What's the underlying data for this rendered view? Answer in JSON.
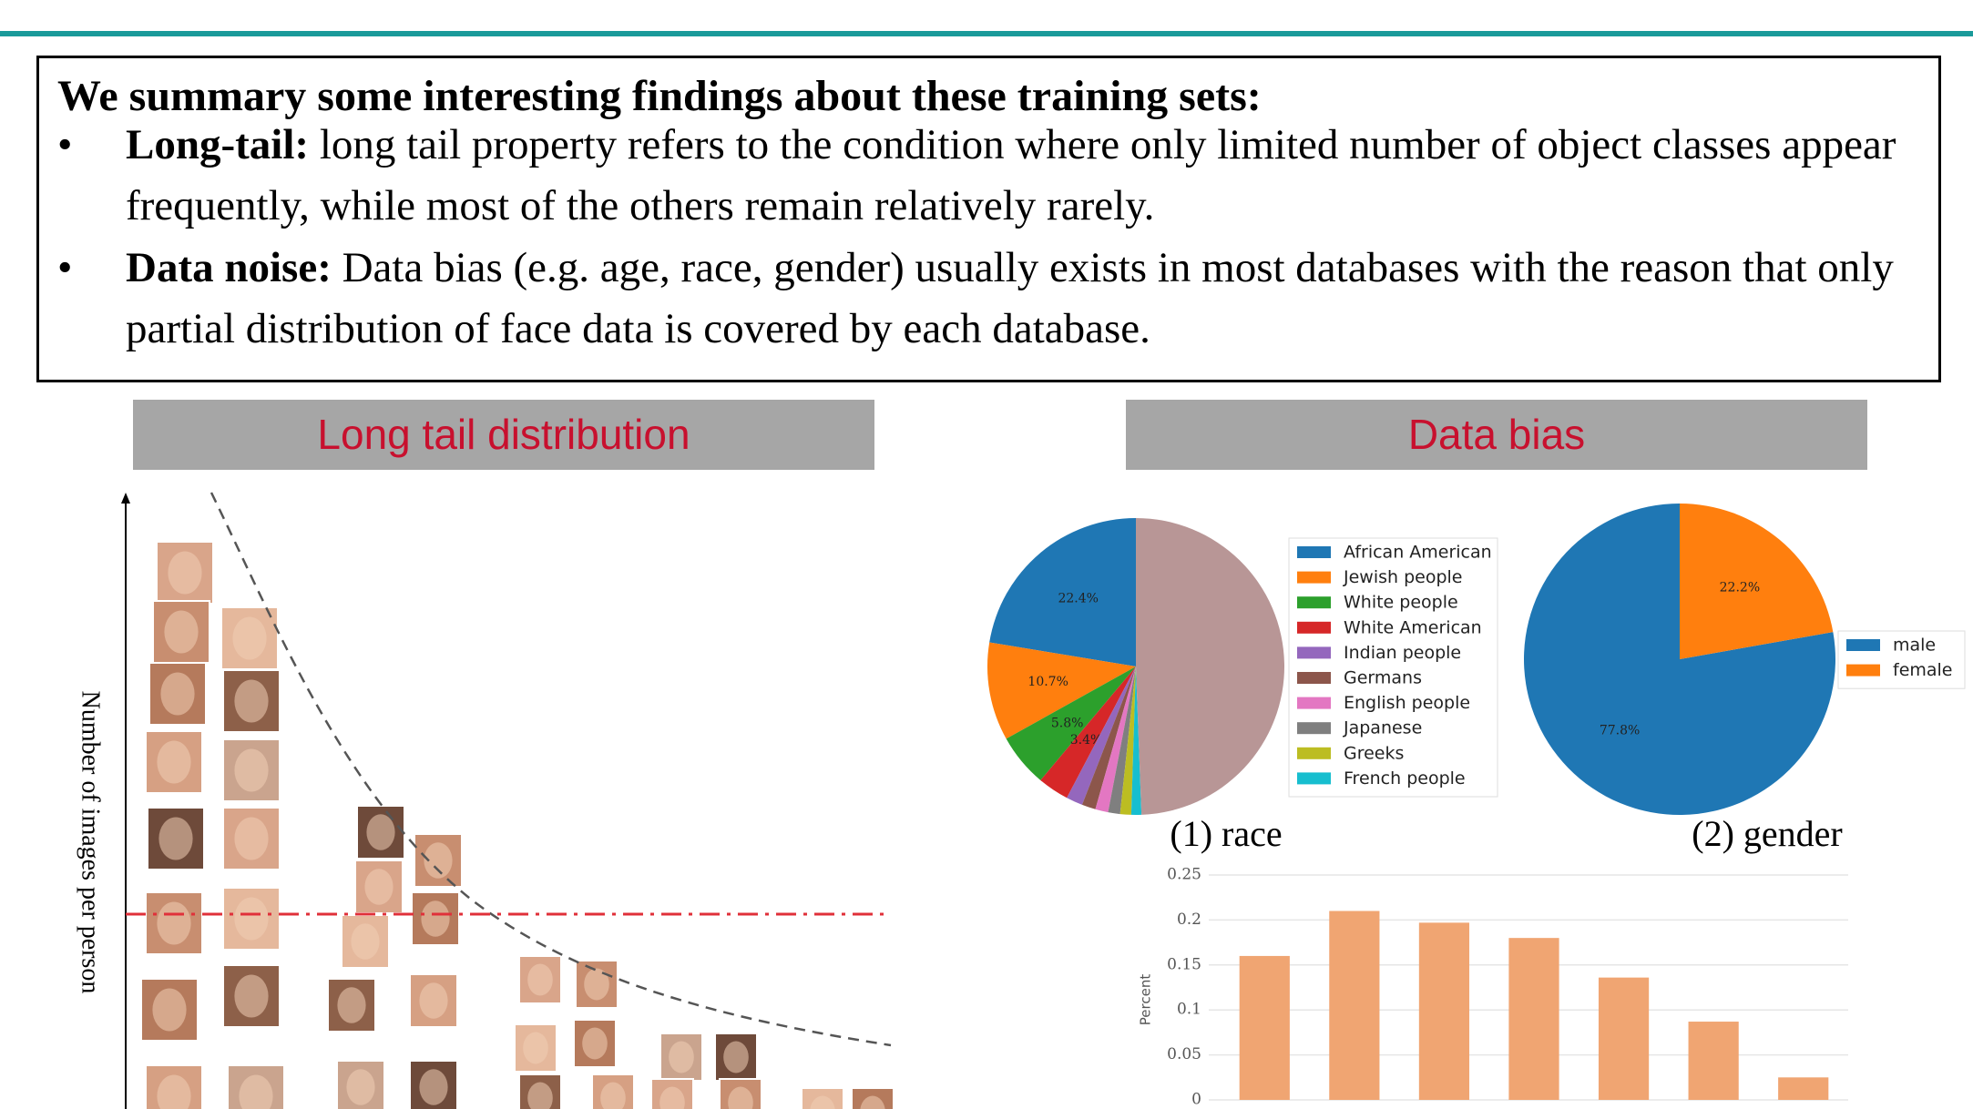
{
  "slide": {
    "heading": "We summary some interesting findings about these training sets:",
    "bullets": [
      {
        "term": "Long-tail:",
        "text": "long tail property refers to the condition where only limited number of object classes appear frequently, while most of the others remain relatively rarely."
      },
      {
        "term": "Data noise:",
        "text": "Data bias (e.g. age, race, gender) usually exists in most databases with the reason that only partial distribution of face data is covered by each database."
      }
    ],
    "sections": [
      "Long tail distribution",
      "Data bias"
    ],
    "long_tail_axis_label": "Number of images per person",
    "captions": [
      "(1) race",
      "(2) gender"
    ]
  },
  "chart_data": [
    {
      "type": "pie",
      "categories": [
        "African American",
        "Jewish people",
        "White people",
        "White American",
        "Indian people",
        "Germans",
        "English people",
        "Japanese",
        "Greeks",
        "French people",
        null
      ],
      "values": [
        22.4,
        10.7,
        5.8,
        3.4,
        1.8,
        1.5,
        1.4,
        1.3,
        1.2,
        1.1,
        49.4
      ],
      "value_labels": [
        "22.4%",
        "10.7%",
        "5.8%",
        "3.4%",
        null,
        null,
        null,
        null,
        null,
        null,
        null
      ],
      "colors": [
        "#1f77b4",
        "#ff7f0e",
        "#2ca02c",
        "#d62728",
        "#9467bd",
        "#8c564b",
        "#e377c2",
        "#7f7f7f",
        "#bcbd22",
        "#17becf",
        "#b89696"
      ],
      "legend": "right"
    },
    {
      "type": "pie",
      "categories": [
        "male",
        "female"
      ],
      "values": [
        77.8,
        22.2
      ],
      "value_labels": [
        "77.8%",
        "22.2%"
      ],
      "colors": [
        "#1f77b4",
        "#ff7f0e"
      ],
      "legend": "right"
    },
    {
      "type": "bar",
      "y_label": "Percent",
      "categories": [
        null,
        null,
        null,
        null,
        null,
        null,
        null
      ],
      "values": [
        0.16,
        0.21,
        0.197,
        0.18,
        0.136,
        0.087,
        0.025
      ],
      "color": "#f0a572",
      "ylim": [
        0,
        0.25
      ],
      "yticks": [
        0,
        0.05,
        0.1,
        0.15,
        0.2,
        0.25
      ],
      "grid": true
    }
  ]
}
